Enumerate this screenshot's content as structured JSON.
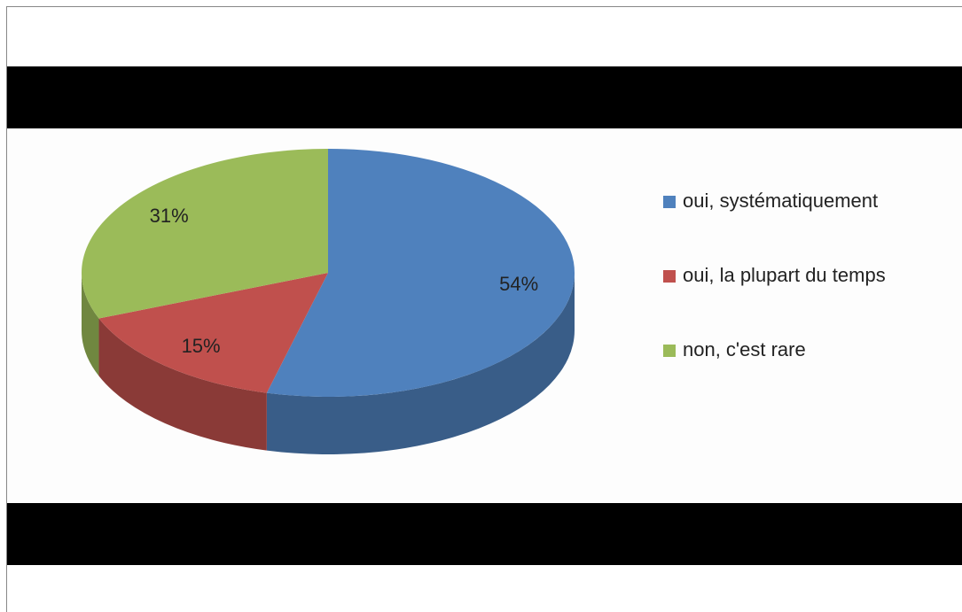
{
  "chart_data": {
    "type": "pie",
    "categories": [
      "oui, systématiquement",
      "oui, la plupart du temps",
      "non, c'est rare"
    ],
    "values": [
      54,
      15,
      31
    ],
    "value_labels": [
      "54%",
      "15%",
      "31%"
    ],
    "colors": [
      "#4f81bd",
      "#c0504d",
      "#9bbb59"
    ],
    "legend": "right"
  }
}
